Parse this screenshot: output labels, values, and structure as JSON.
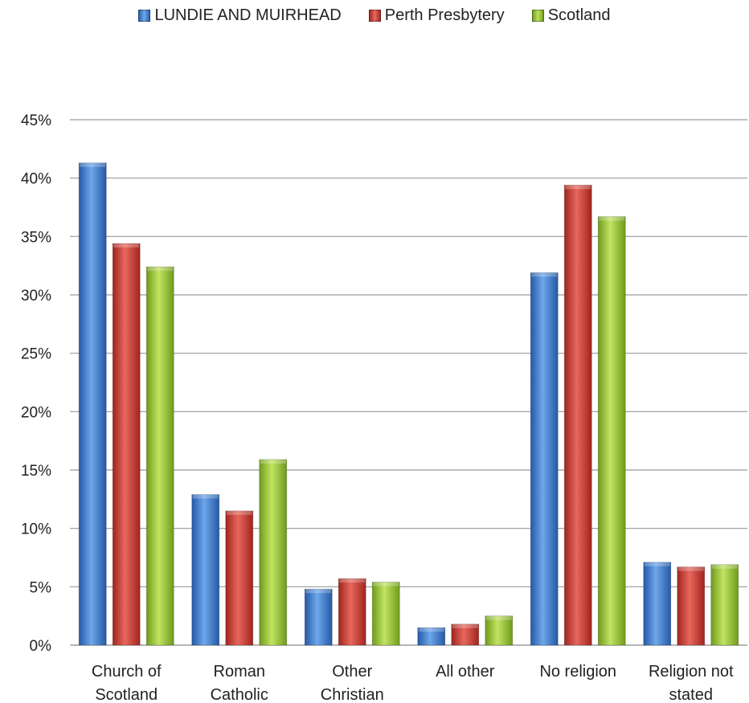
{
  "chart_data": {
    "type": "bar",
    "categories": [
      [
        "Church of",
        "Scotland"
      ],
      [
        "Roman",
        "Catholic"
      ],
      [
        "Other",
        "Christian"
      ],
      [
        "All other"
      ],
      [
        "No religion"
      ],
      [
        "Religion not",
        "stated"
      ]
    ],
    "series": [
      {
        "name": "LUNDIE AND MUIRHEAD",
        "color": "#3b78c9",
        "values": [
          41.3,
          12.9,
          4.8,
          1.5,
          31.9,
          7.1
        ]
      },
      {
        "name": "Perth Presbytery",
        "color": "#c0392f",
        "values": [
          34.4,
          11.5,
          5.7,
          1.8,
          39.4,
          6.7
        ]
      },
      {
        "name": "Scotland",
        "color": "#8fba2f",
        "values": [
          32.4,
          15.9,
          5.4,
          2.5,
          36.7,
          6.9
        ]
      }
    ],
    "yticks": [
      "0%",
      "5%",
      "10%",
      "15%",
      "20%",
      "25%",
      "30%",
      "35%",
      "40%",
      "45%"
    ],
    "ylim": [
      0,
      45
    ],
    "grid": true,
    "legend_position": "top"
  }
}
